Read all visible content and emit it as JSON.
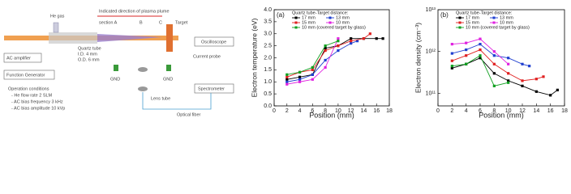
{
  "diagram": {
    "texts": [
      "He gas",
      "Indicated direction of plasma plume",
      "section A",
      "B",
      "C",
      "Target",
      "Quartz tube",
      "I.D.    4 mm",
      "O.D.    6 mm",
      "AC amplifier",
      "Function Generator",
      "Oscilloscope",
      "Current probe",
      "GND",
      "GND",
      "Spectrometer",
      "Lens tube",
      "Optical fiber",
      "Operation conditions",
      "- He flow rate          2    SLM",
      "- AC bias frequency    3    kHz",
      "- AC bias amplitude   10   kVp"
    ]
  },
  "chart_data": [
    {
      "type": "line",
      "panel": "(a)",
      "ylabel": "Electron temperature (eV)",
      "xlabel": "Position (mm)",
      "legend_title": "Quartz tube-Target distance:",
      "xlim": [
        0,
        18
      ],
      "xticks": [
        0,
        2,
        4,
        6,
        8,
        10,
        12,
        14,
        16,
        18
      ],
      "ylim": [
        0,
        4
      ],
      "yticks": [
        {
          "value": 0,
          "label": "0.0"
        },
        0.5,
        {
          "value": 1,
          "label": "1.0"
        },
        1.5,
        {
          "value": 2,
          "label": "2.0"
        },
        2.5,
        {
          "value": 3,
          "label": "3.0"
        },
        3.5,
        {
          "value": 4,
          "label": "4.0"
        }
      ],
      "log": false,
      "series": [
        {
          "name": "17 mm",
          "color": "#000000",
          "x": [
            2,
            4,
            6,
            8,
            10,
            12,
            14,
            16,
            17
          ],
          "values": [
            1.1,
            1.2,
            1.3,
            2.4,
            2.5,
            2.8,
            2.8,
            2.8,
            2.8
          ]
        },
        {
          "name": "13 mm",
          "color": "#1f3fd0",
          "x": [
            2,
            4,
            6,
            8,
            10,
            12,
            13
          ],
          "values": [
            1.0,
            1.1,
            1.3,
            1.9,
            2.3,
            2.6,
            2.7
          ]
        },
        {
          "name": "15 mm",
          "color": "#e02020",
          "x": [
            2,
            4,
            6,
            8,
            10,
            12,
            14,
            15
          ],
          "values": [
            1.2,
            1.4,
            1.5,
            2.3,
            2.5,
            2.7,
            2.8,
            3.0
          ]
        },
        {
          "name": "10 mm",
          "color": "#e020e0",
          "x": [
            2,
            4,
            6,
            8,
            10
          ],
          "values": [
            0.9,
            1.0,
            1.1,
            1.6,
            2.8
          ]
        },
        {
          "name": "10 mm (covered target by glass)",
          "color": "#10a020",
          "x": [
            2,
            4,
            6,
            8,
            10
          ],
          "values": [
            1.3,
            1.4,
            1.6,
            2.5,
            2.7
          ]
        }
      ]
    },
    {
      "type": "line",
      "panel": "(b)",
      "ylabel": "Electron density (cm⁻³)",
      "xlabel": "Position (mm)",
      "legend_title": "Quartz tube-Target distance:",
      "xlim": [
        0,
        18
      ],
      "xticks": [
        0,
        2,
        4,
        6,
        8,
        10,
        12,
        14,
        16,
        18
      ],
      "ylim": [
        50000000000,
        10000000000000
      ],
      "yticks": [
        {
          "value": 100000000000,
          "label": "10¹¹"
        },
        {
          "value": 1000000000000,
          "label": "10¹²"
        },
        {
          "value": 10000000000000,
          "label": "10¹³"
        }
      ],
      "log": true,
      "series": [
        {
          "name": "17 mm",
          "color": "#000000",
          "x": [
            2,
            4,
            6,
            8,
            10,
            12,
            14,
            16,
            17
          ],
          "values": [
            400000000000,
            500000000000,
            700000000000,
            300000000000,
            200000000000,
            150000000000,
            110000000000,
            90000000000,
            120000000000
          ]
        },
        {
          "name": "13 mm",
          "color": "#1f3fd0",
          "x": [
            2,
            4,
            6,
            8,
            10,
            12,
            13
          ],
          "values": [
            900000000000,
            1100000000000,
            1500000000000,
            800000000000,
            700000000000,
            500000000000,
            450000000000
          ]
        },
        {
          "name": "15 mm",
          "color": "#e02020",
          "x": [
            2,
            4,
            6,
            8,
            10,
            12,
            14,
            15
          ],
          "values": [
            600000000000,
            800000000000,
            1100000000000,
            500000000000,
            300000000000,
            200000000000,
            220000000000,
            250000000000
          ]
        },
        {
          "name": "10 mm",
          "color": "#e020e0",
          "x": [
            2,
            4,
            6,
            8,
            10
          ],
          "values": [
            1500000000000,
            1600000000000,
            2000000000000,
            1000000000000,
            500000000000
          ]
        },
        {
          "name": "10 mm (covered target by glass)",
          "color": "#10a020",
          "x": [
            2,
            4,
            6,
            8,
            10
          ],
          "values": [
            450000000000,
            500000000000,
            800000000000,
            150000000000,
            180000000000
          ]
        }
      ]
    }
  ]
}
